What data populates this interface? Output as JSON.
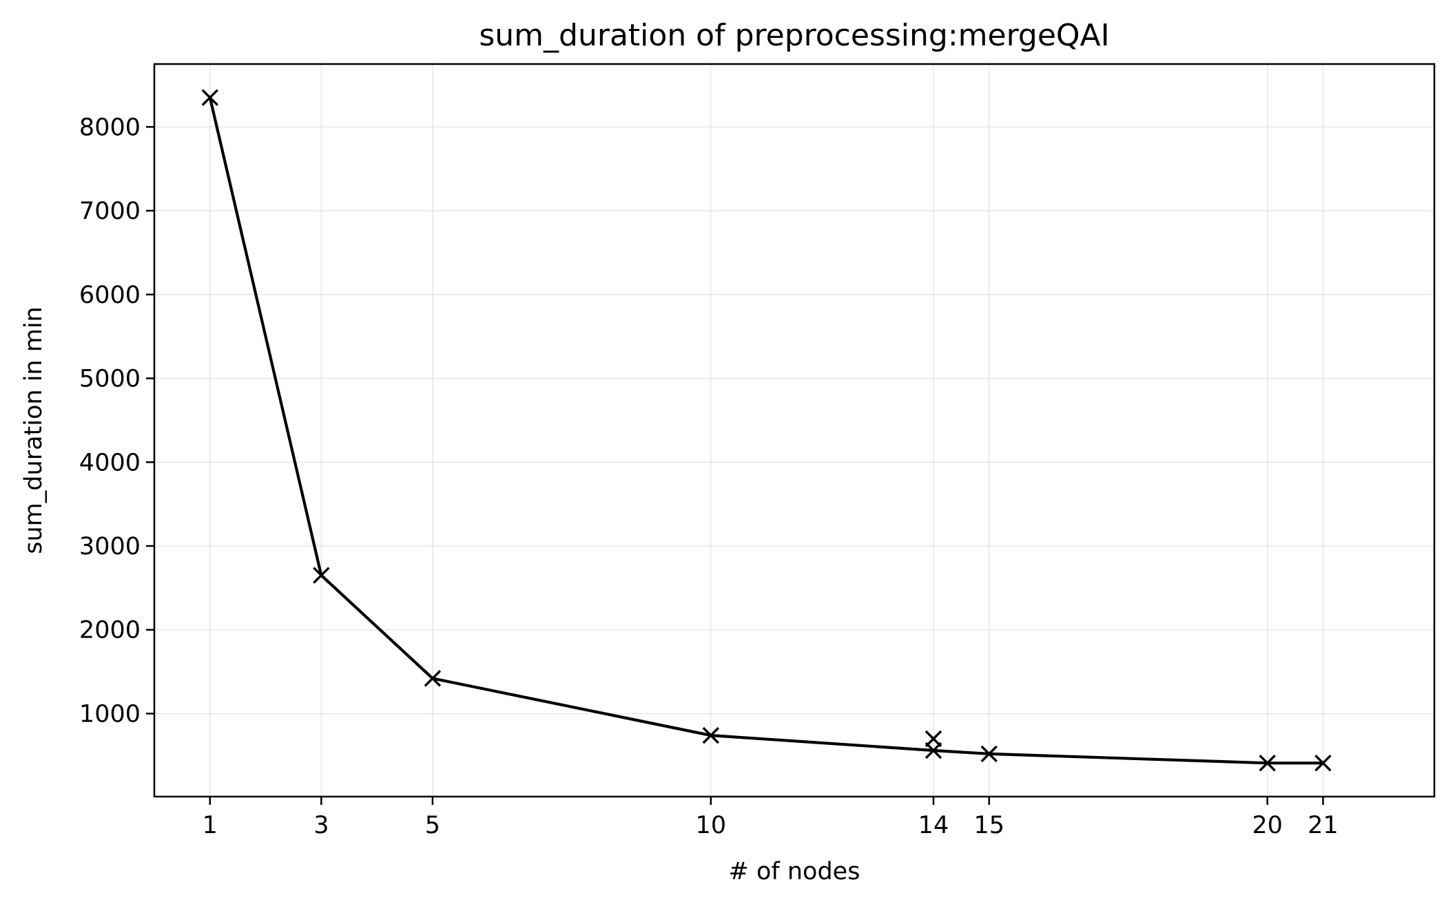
{
  "chart_data": {
    "type": "line",
    "title": "sum_duration of preprocessing:mergeQAI",
    "xlabel": "# of nodes",
    "ylabel": "sum_duration in min",
    "x_ticks": [
      1,
      3,
      5,
      10,
      14,
      15,
      20,
      21
    ],
    "x_tick_labels": [
      "1",
      "3",
      "5",
      "10",
      "14",
      "15",
      "20",
      "21"
    ],
    "y_ticks": [
      1000,
      2000,
      3000,
      4000,
      5000,
      6000,
      7000,
      8000
    ],
    "y_tick_labels": [
      "1000",
      "2000",
      "3000",
      "4000",
      "5000",
      "6000",
      "7000",
      "8000"
    ],
    "xlim": [
      0,
      23
    ],
    "ylim": [
      10,
      8750
    ],
    "grid": true,
    "series": [
      {
        "color": "#000000",
        "marker": "x",
        "x": [
          1,
          3,
          5,
          10,
          14,
          15,
          20,
          21
        ],
        "y": [
          8350,
          2650,
          1420,
          740,
          560,
          520,
          410,
          410
        ]
      }
    ],
    "extra_points": [
      {
        "x": 14,
        "y": 700
      }
    ]
  }
}
